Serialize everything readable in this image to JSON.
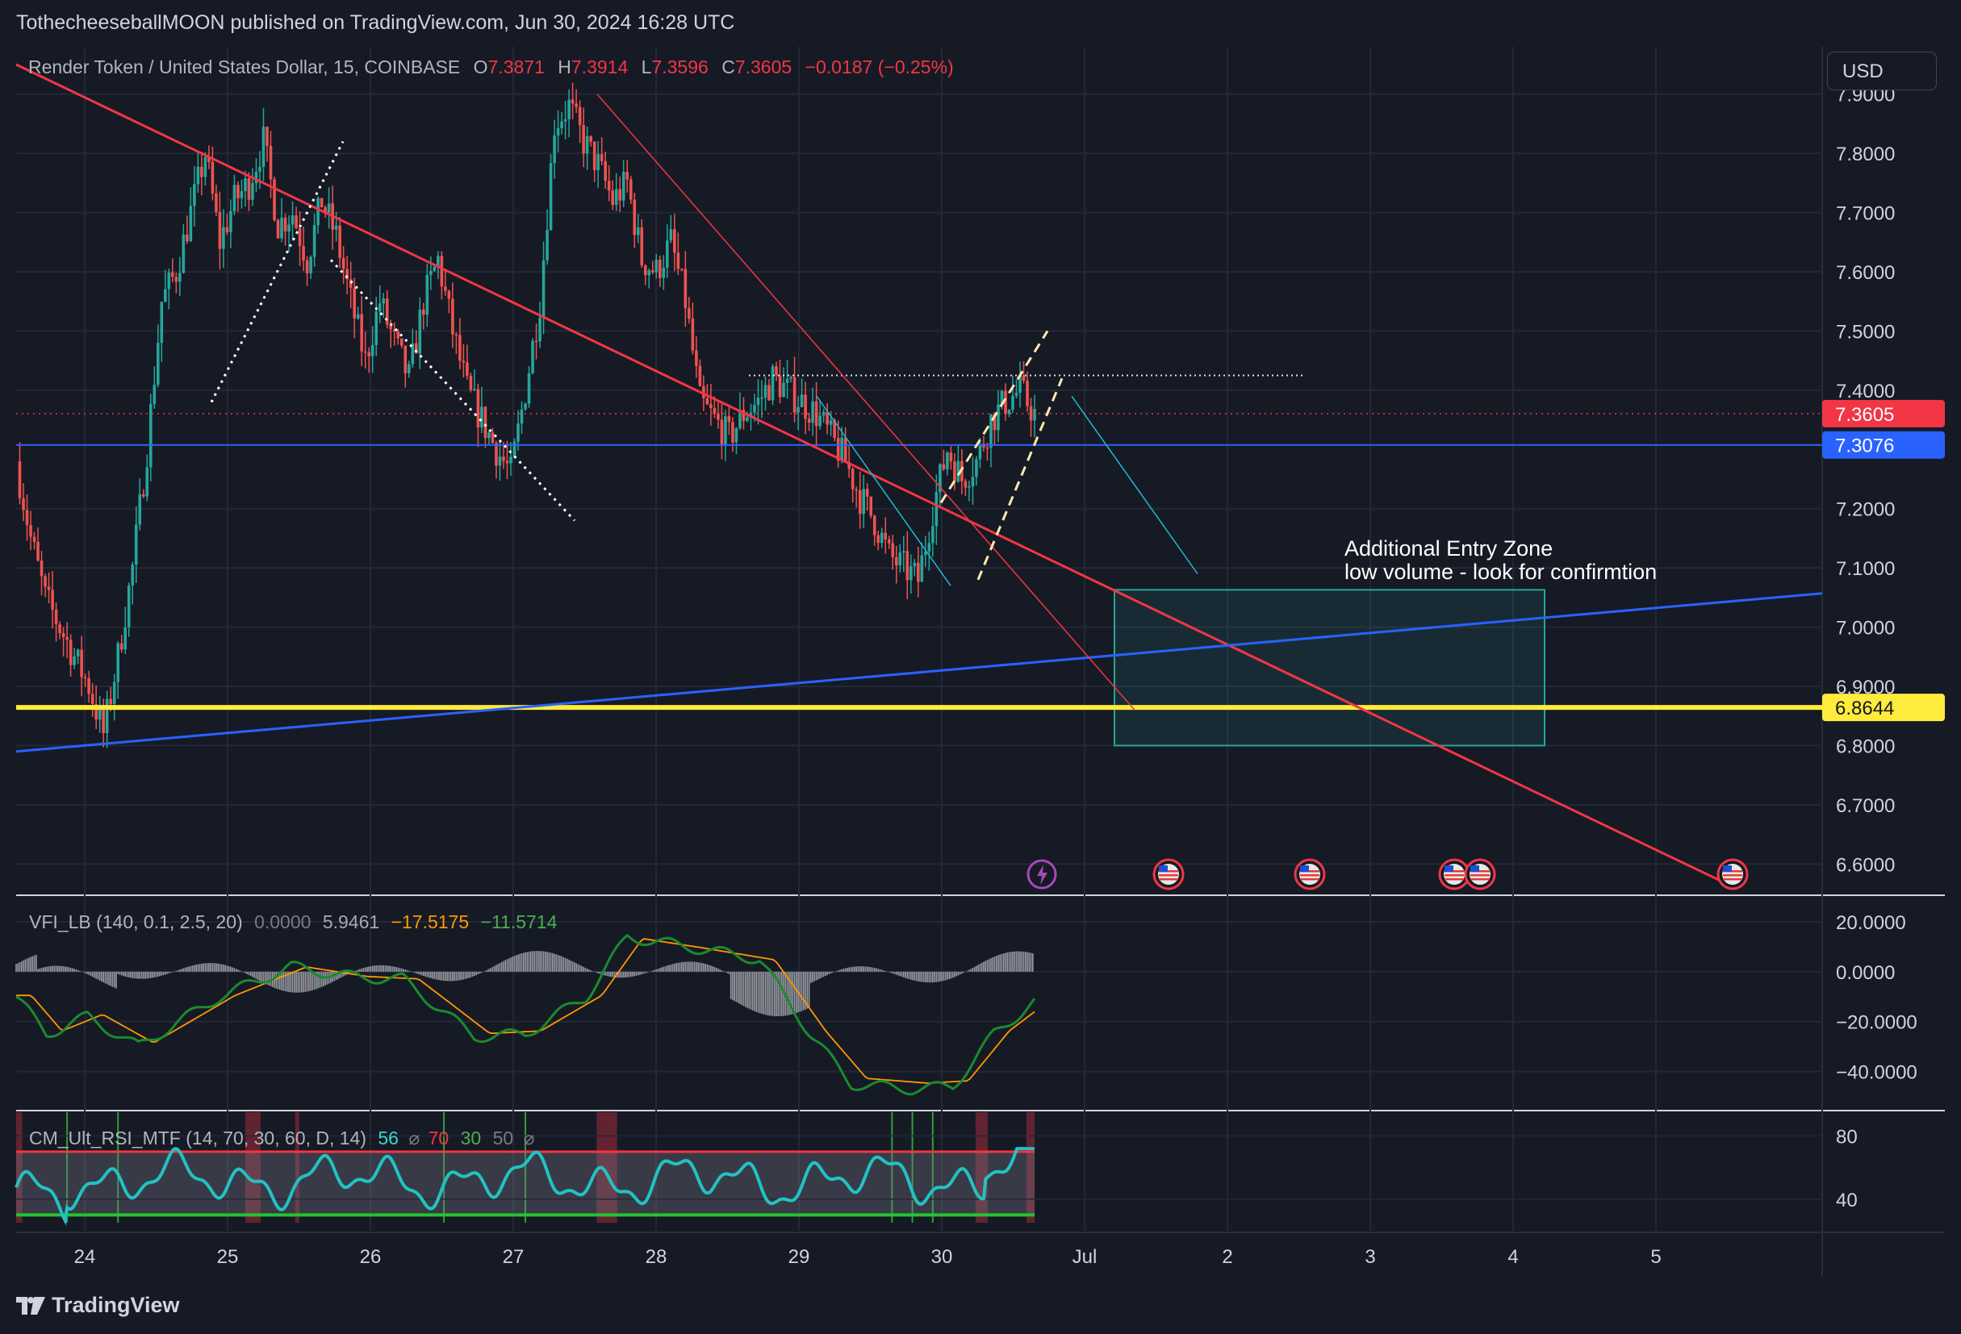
{
  "header": {
    "published_by": "TothecheeseballMOON published on TradingView.com, Jun 30, 2024 16:28 UTC"
  },
  "symbol": {
    "name": "Render Token / United States Dollar, 15, COINBASE",
    "open_label": "O",
    "open": "7.3871",
    "high_label": "H",
    "high": "7.3914",
    "low_label": "L",
    "low": "7.3596",
    "close_label": "C",
    "close": "7.3605",
    "change": "−0.0187 (−0.25%)"
  },
  "currency_button": "USD",
  "price_axis": {
    "ticks": [
      "7.9000",
      "7.8000",
      "7.7000",
      "7.6000",
      "7.5000",
      "7.4000",
      "7.2000",
      "7.1000",
      "7.0000",
      "6.9000",
      "6.8000",
      "6.7000",
      "6.6000"
    ],
    "badges": [
      {
        "label": "7.3605",
        "color": "#f23645",
        "text_color": "#ffffff"
      },
      {
        "label": "7.3076",
        "color": "#2962ff",
        "text_color": "#ffffff"
      },
      {
        "label": "6.8644",
        "color": "#ffeb3b",
        "text_color": "#131722"
      }
    ]
  },
  "time_axis": {
    "labels": [
      "24",
      "25",
      "26",
      "27",
      "28",
      "29",
      "30",
      "Jul",
      "2",
      "3",
      "4",
      "5"
    ]
  },
  "annotation": {
    "line1": "Additional Entry Zone",
    "line2": "low volume - look for confirmtion"
  },
  "vfi_panel": {
    "title": "VFI_LB (140, 0.1, 2.5, 20)",
    "v1": "0.0000",
    "v2": "5.9461",
    "v3": "−17.5175",
    "v4": "−11.5714",
    "ticks": [
      "20.0000",
      "0.0000",
      "−20.0000",
      "−40.0000"
    ]
  },
  "rsi_panel": {
    "title": "CM_Ult_RSI_MTF (14, 70, 30, 60, D, 14)",
    "v1": "56",
    "v2": "70",
    "v3": "30",
    "v4": "50",
    "sym": "⌀",
    "sym2": "⌀",
    "ticks": [
      "80",
      "40"
    ]
  },
  "brand": "TradingView",
  "colors": {
    "background": "#161a25",
    "up": "#26a69a",
    "down": "#ef5350",
    "trendline_red": "#f23645",
    "support_yellow": "#ffeb3b",
    "trend_blue": "#2962ff",
    "zone": "#26a69a"
  },
  "chart_data": {
    "type": "candlestick",
    "title": "Render Token / United States Dollar, 15, COINBASE",
    "ylim": [
      6.55,
      7.98
    ],
    "xlabels": [
      "24",
      "25",
      "26",
      "27",
      "28",
      "29",
      "30",
      "Jul",
      "2",
      "3",
      "4",
      "5"
    ],
    "close_path_hourly": [
      7.28,
      7.15,
      7.05,
      7.0,
      6.95,
      6.9,
      6.82,
      6.95,
      7.1,
      7.3,
      7.55,
      7.6,
      7.7,
      7.8,
      7.65,
      7.72,
      7.75,
      7.82,
      7.68,
      7.7,
      7.62,
      7.72,
      7.66,
      7.55,
      7.45,
      7.55,
      7.48,
      7.42,
      7.55,
      7.62,
      7.5,
      7.4,
      7.35,
      7.3,
      7.26,
      7.4,
      7.55,
      7.85,
      7.88,
      7.82,
      7.78,
      7.72,
      7.75,
      7.62,
      7.6,
      7.65,
      7.55,
      7.38,
      7.35,
      7.32,
      7.36,
      7.38,
      7.42,
      7.4,
      7.38,
      7.36,
      7.32,
      7.28,
      7.22,
      7.18,
      7.12,
      7.1,
      7.08,
      7.2,
      7.3,
      7.25,
      7.28,
      7.35,
      7.38,
      7.4,
      7.36
    ],
    "current_price": 7.3605,
    "horizontal_levels": {
      "current": 7.3605,
      "blue_level": 7.3076,
      "yellow_support": 6.8644,
      "dotted_resistance": 7.425
    },
    "entry_zone": {
      "price_high": 7.063,
      "price_low": 6.8,
      "label": "Additional Entry Zone"
    },
    "vfi": {
      "ylim": [
        -55,
        30
      ]
    },
    "rsi": {
      "upper": 70,
      "lower": 30,
      "ylim": [
        20,
        95
      ]
    }
  }
}
